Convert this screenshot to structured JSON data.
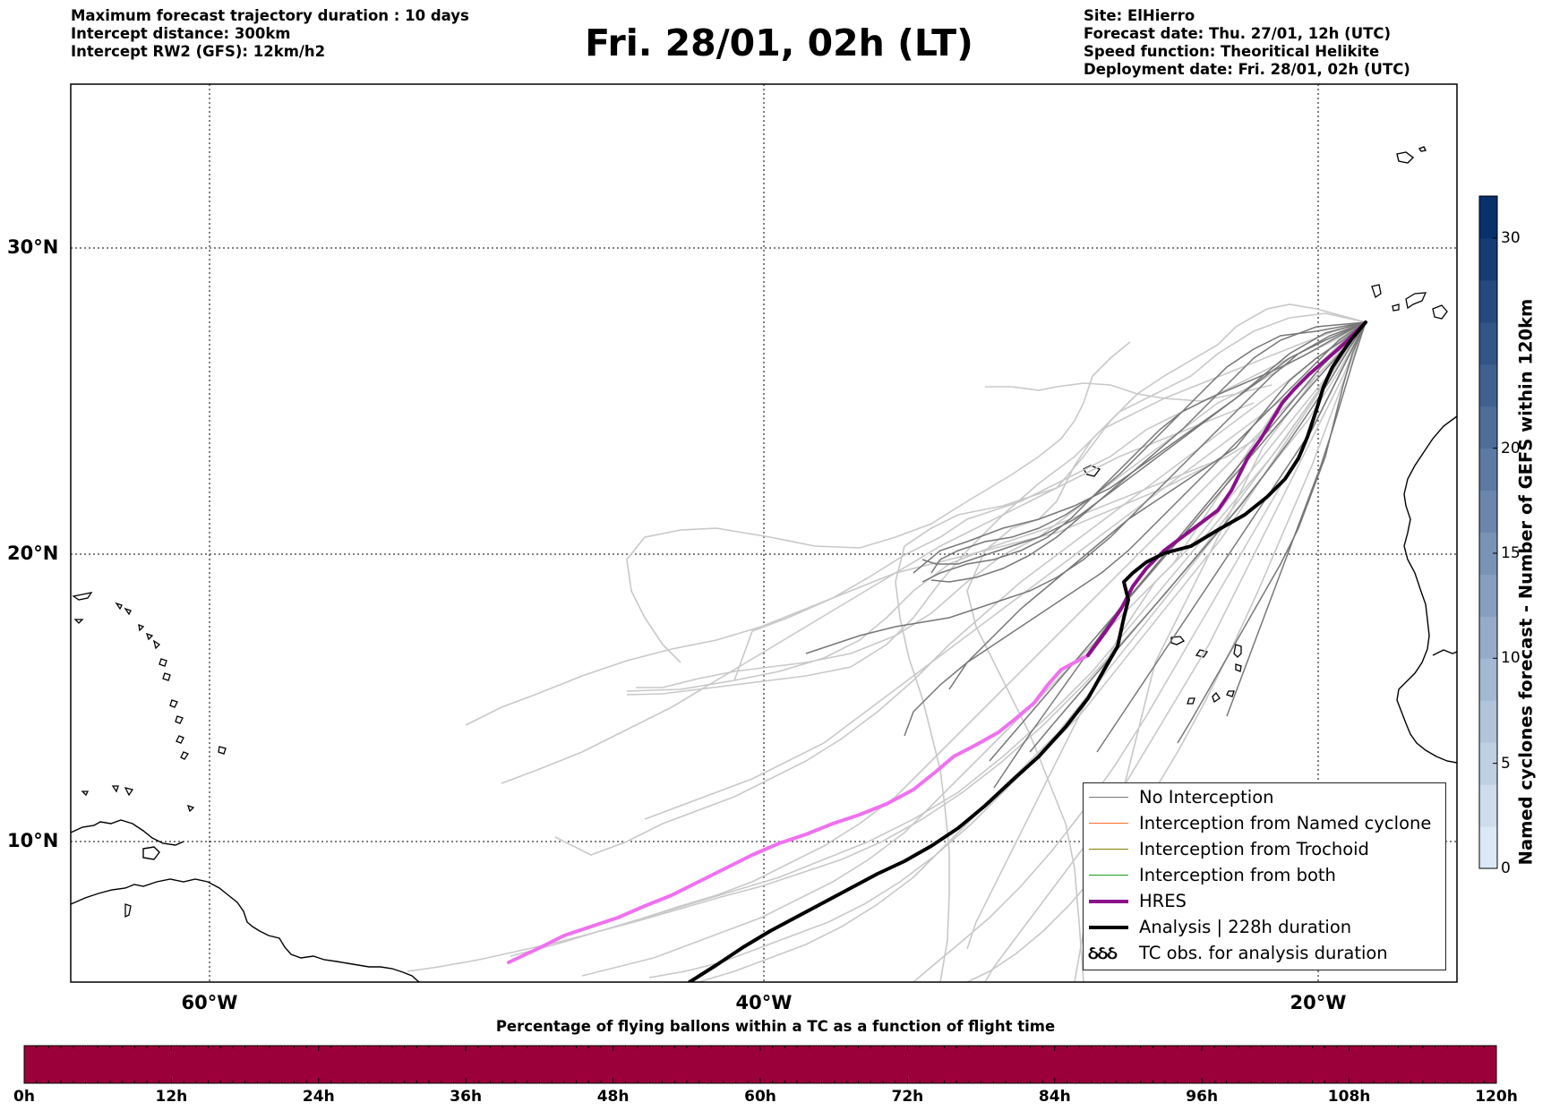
{
  "header": {
    "left": [
      "Maximum forecast trajectory duration : 10 days",
      "Intercept distance: 300km",
      "Intercept RW2 (GFS):  12km/h2"
    ],
    "title": "Fri. 28/01, 02h (LT)",
    "right": [
      "Site: ElHierro",
      "Forecast date: Thu. 27/01, 12h (UTC)",
      "Speed function: Theoritical Helikite",
      "Deployment date: Fri. 28/01, 02h (UTC)"
    ]
  },
  "map": {
    "lat_labels": [
      "30°N",
      "20°N",
      "10°N"
    ],
    "lon_labels": [
      "60°W",
      "40°W",
      "20°W"
    ],
    "grid": "dotted",
    "colors": {
      "no_interception": "#777777",
      "named_cyclone": "#ff6a2a",
      "trochoid": "#808000",
      "both": "#1aa01a",
      "hres": "#8b108b",
      "hres_light": "#f070f0",
      "analysis": "#000000",
      "faded": "#c8c8c8"
    }
  },
  "legend": {
    "items": [
      {
        "label": "No Interception",
        "color": "#777777"
      },
      {
        "label": "Interception from Named cyclone",
        "color": "#ff6a2a"
      },
      {
        "label": "Interception from Trochoid",
        "color": "#808000"
      },
      {
        "label": "Interception from both",
        "color": "#1aa01a"
      },
      {
        "label": "HRES",
        "color": "#8b108b"
      },
      {
        "label": "Analysis | 228h duration",
        "color": "#000000"
      }
    ],
    "tc_symbol": "ઠઠઠ",
    "tc_label": "TC obs. for analysis duration"
  },
  "colorbar_right": {
    "label": "Named cyclones forecast - Number of GEFS within 120km",
    "ticks": [
      "30",
      "20",
      "15",
      "10",
      "5",
      "0"
    ],
    "tick_values": [
      30,
      20,
      15,
      10,
      5,
      0
    ],
    "max": 32,
    "color_low": "#dbe9f6",
    "color_high": "#08306b"
  },
  "colorbar_bottom": {
    "caption": "Percentage of flying ballons within a TC as a function of flight time",
    "ticks": [
      "0h",
      "12h",
      "24h",
      "36h",
      "48h",
      "60h",
      "72h",
      "84h",
      "96h",
      "108h",
      "120h"
    ],
    "color": "#9b003a"
  }
}
